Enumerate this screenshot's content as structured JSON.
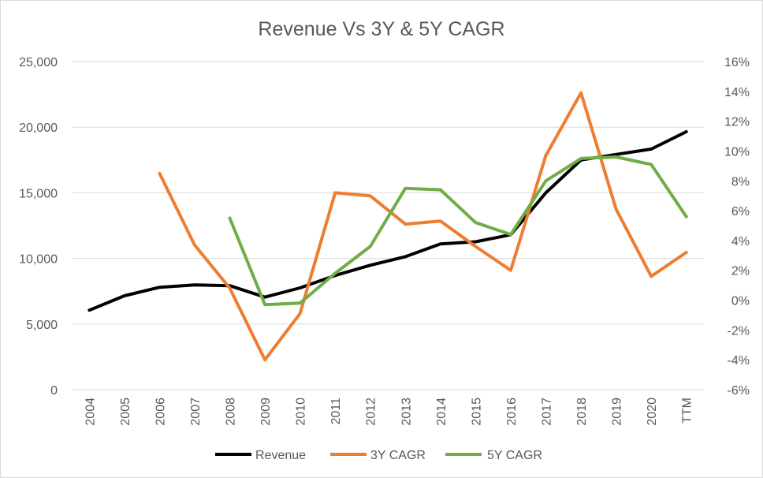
{
  "chart_data": {
    "type": "line",
    "title": "Revenue Vs 3Y & 5Y CAGR",
    "categories": [
      "2004",
      "2005",
      "2006",
      "2007",
      "2008",
      "2009",
      "2010",
      "2011",
      "2012",
      "2013",
      "2014",
      "2015",
      "2016",
      "2017",
      "2018",
      "2019",
      "2020",
      "TTM"
    ],
    "y_left": {
      "min": 0,
      "max": 25000,
      "step": 5000,
      "tick_labels": [
        "0",
        "5,000",
        "10,000",
        "15,000",
        "20,000",
        "25,000"
      ]
    },
    "y_right": {
      "min": -6,
      "max": 16,
      "step": 2,
      "tick_labels": [
        "-6%",
        "-4%",
        "-2%",
        "0%",
        "2%",
        "4%",
        "6%",
        "8%",
        "10%",
        "12%",
        "14%",
        "16%"
      ]
    },
    "grid": "horizontal",
    "legend_position": "bottom",
    "series": [
      {
        "name": "Revenue",
        "axis": "left",
        "color": "#000000",
        "values": [
          6050,
          7150,
          7800,
          7980,
          7920,
          7050,
          7750,
          8700,
          9480,
          10130,
          11100,
          11270,
          11800,
          15000,
          17500,
          17920,
          18330,
          19650
        ]
      },
      {
        "name": "3Y CAGR",
        "axis": "right",
        "color": "#ed7d31",
        "values": [
          null,
          null,
          8.5,
          3.7,
          0.8,
          -4.0,
          -0.9,
          7.2,
          7.0,
          5.1,
          5.3,
          3.6,
          2.0,
          9.7,
          13.9,
          6.1,
          1.6,
          3.2
        ]
      },
      {
        "name": "5Y CAGR",
        "axis": "right",
        "color": "#70ad47",
        "values": [
          null,
          null,
          null,
          null,
          5.5,
          -0.3,
          -0.2,
          1.8,
          3.6,
          7.5,
          7.4,
          5.2,
          4.4,
          8.0,
          9.5,
          9.6,
          9.1,
          5.6
        ]
      }
    ]
  }
}
